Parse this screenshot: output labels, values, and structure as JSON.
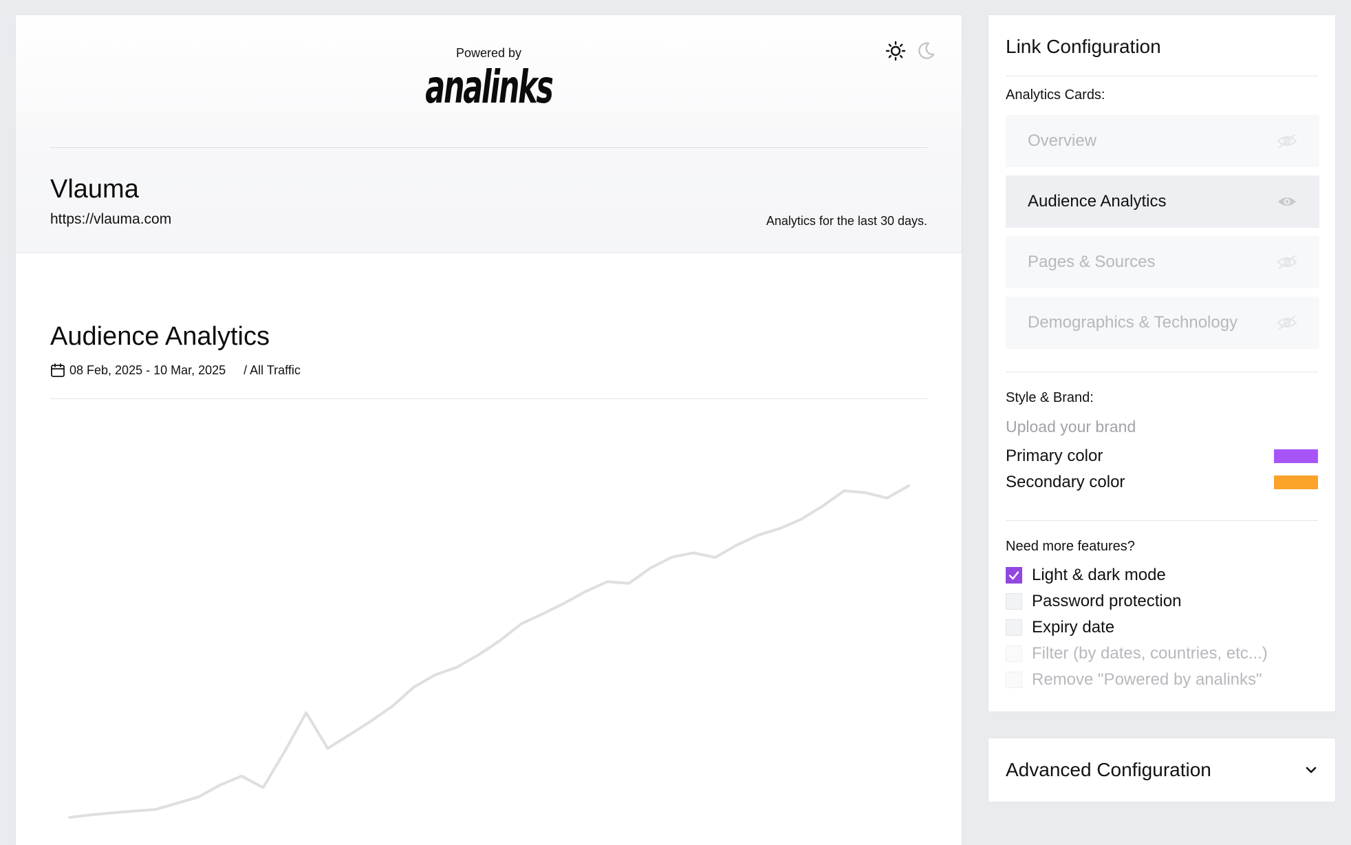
{
  "preview": {
    "powered_by": "Powered by",
    "logo_text": "analinks",
    "site_name": "Vlauma",
    "site_url": "https://vlauma.com",
    "range_note": "Analytics for the last 30 days.",
    "theme_icons": [
      "sun-icon",
      "moon-icon"
    ],
    "section": {
      "title": "Audience Analytics",
      "date_range": "08 Feb, 2025 - 10 Mar, 2025",
      "traffic_filter": "/ All Traffic"
    }
  },
  "chart_data": {
    "type": "line",
    "title": "",
    "xlabel": "",
    "ylabel": "",
    "x_start": "08 Feb, 2025",
    "x_end": "10 Mar, 2025",
    "grid": false,
    "legend": "none",
    "color": "#dedfe2",
    "ylim": [
      0,
      100
    ],
    "series": [
      {
        "values": [
          0.0,
          0.8,
          1.4,
          1.9,
          2.4,
          4.3,
          6.2,
          9.8,
          12.5,
          9.0,
          19.9,
          31.6,
          20.8,
          24.9,
          29.0,
          33.5,
          39.3,
          43.0,
          45.3,
          49.0,
          53.3,
          58.4,
          61.4,
          64.6,
          68.2,
          71.1,
          70.6,
          75.2,
          78.5,
          79.8,
          78.4,
          82.1,
          85.1,
          87.1,
          89.9,
          93.9,
          98.5,
          97.9,
          96.3,
          100.0
        ]
      }
    ]
  },
  "config": {
    "title": "Link Configuration",
    "cards_label": "Analytics Cards:",
    "cards": [
      {
        "label": "Overview",
        "visible": false
      },
      {
        "label": "Audience Analytics",
        "visible": true
      },
      {
        "label": "Pages & Sources",
        "visible": false
      },
      {
        "label": "Demographics & Technology",
        "visible": false
      }
    ],
    "style_label": "Style & Brand:",
    "upload_label": "Upload your brand",
    "primary_label": "Primary color",
    "primary_color": "#a855f7",
    "secondary_label": "Secondary color",
    "secondary_color": "#fba32a",
    "features_label": "Need more features?",
    "features": [
      {
        "label": "Light & dark mode",
        "checked": true,
        "enabled": true
      },
      {
        "label": "Password protection",
        "checked": false,
        "enabled": true
      },
      {
        "label": "Expiry date",
        "checked": false,
        "enabled": true
      },
      {
        "label": "Filter (by dates, countries, etc...)",
        "checked": false,
        "enabled": false
      },
      {
        "label": "Remove \"Powered by analinks\"",
        "checked": false,
        "enabled": false
      }
    ]
  },
  "advanced": {
    "title": "Advanced Configuration",
    "icon": "chevron-down-icon"
  }
}
